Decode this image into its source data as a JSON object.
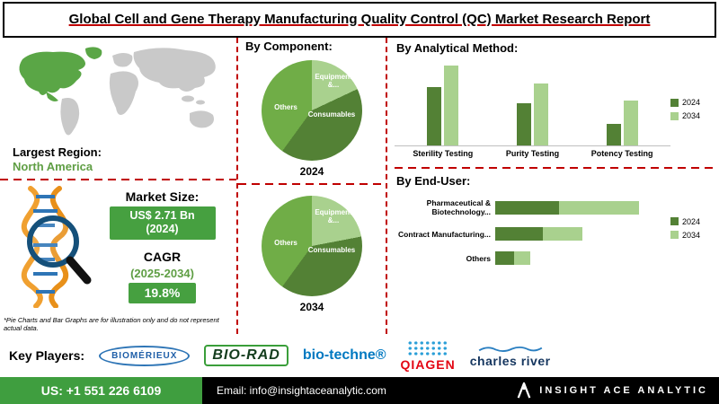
{
  "title": "Global Cell and Gene Therapy Manufacturing Quality Control (QC) Market Research Report",
  "colors": {
    "accent_green": "#46a040",
    "dark_green": "#538135",
    "light_green": "#a9d18e",
    "medium_green": "#70ad47",
    "divider_red": "#c00000",
    "region_green_text": "#5f9e44"
  },
  "left": {
    "largest_region_label": "Largest Region:",
    "largest_region_value": "North America",
    "market_size_label": "Market Size:",
    "market_size_value": "US$ 2.71 Bn (2024)",
    "cagr_label": "CAGR",
    "cagr_period": "(2025-2034)",
    "cagr_value": "19.8%",
    "footnote": "*Pie Charts and Bar Graphs are for illustration only and do not represent actual data."
  },
  "sections": {
    "component_heading": "By Component:"
  },
  "players": {
    "label": "Key Players:",
    "logos": [
      "BIOMÉRIEUX",
      "BIO-RAD",
      "bio-techne®",
      "QIAGEN",
      "charles river"
    ]
  },
  "footer": {
    "phone": "US: +1 551 226 6109",
    "email": "Email: info@insightaceanalytic.com",
    "brand": "INSIGHT ACE ANALYTIC"
  },
  "chart_data": [
    {
      "type": "pie",
      "title": "2024",
      "labels": [
        "Equipment &...",
        "Consumables",
        "Others"
      ],
      "values": [
        18,
        42,
        40
      ],
      "colors": [
        "#a9d18e",
        "#538135",
        "#70ad47"
      ],
      "note": "illustrative only per footnote"
    },
    {
      "type": "pie",
      "title": "2034",
      "labels": [
        "Equipment &...",
        "Consumables",
        "Others"
      ],
      "values": [
        22,
        38,
        40
      ],
      "colors": [
        "#a9d18e",
        "#538135",
        "#70ad47"
      ],
      "note": "illustrative only per footnote"
    },
    {
      "type": "bar",
      "title": "By  Analytical Method:",
      "categories": [
        "Sterility Testing",
        "Purity Testing",
        "Potency Testing"
      ],
      "series": [
        {
          "name": "2024",
          "values": [
            55,
            40,
            20
          ]
        },
        {
          "name": "2034",
          "values": [
            75,
            58,
            42
          ]
        }
      ],
      "colors": [
        "#538135",
        "#a9d18e"
      ],
      "ylim": [
        0,
        80
      ],
      "legend_position": "right",
      "grid": false,
      "note": "illustrative only per footnote"
    },
    {
      "type": "bar",
      "orientation": "horizontal",
      "title": "By End-User:",
      "categories": [
        "Pharmaceutical & Biotechnology...",
        "Contract Manufacturing...",
        "Others"
      ],
      "series": [
        {
          "name": "2024",
          "values": [
            40,
            30,
            12
          ]
        },
        {
          "name": "2034",
          "values": [
            90,
            55,
            22
          ]
        }
      ],
      "colors": [
        "#538135",
        "#a9d18e"
      ],
      "xlim": [
        0,
        110
      ],
      "legend_position": "right",
      "grid": false,
      "note": "illustrative only per footnote"
    }
  ]
}
